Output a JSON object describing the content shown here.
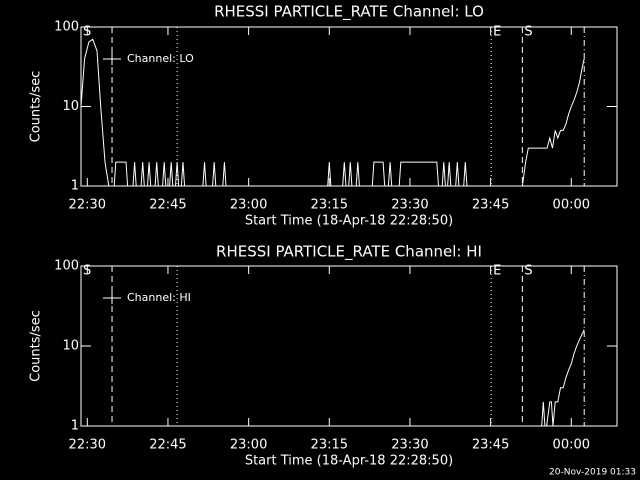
{
  "chart_data": [
    {
      "type": "line",
      "title": "RHESSI PARTICLE_RATE Channel: LO",
      "xlabel": "Start Time (18-Apr-18 22:28:50)",
      "ylabel": "Counts/sec",
      "xlim": [
        28.83,
        128.5
      ],
      "ylim": [
        1,
        100
      ],
      "log_y": true,
      "xticks": [
        {
          "value": 30,
          "label": "22:30"
        },
        {
          "value": 45,
          "label": "22:45"
        },
        {
          "value": 60,
          "label": "23:00"
        },
        {
          "value": 75,
          "label": "23:15"
        },
        {
          "value": 90,
          "label": "23:30"
        },
        {
          "value": 105,
          "label": "23:45"
        },
        {
          "value": 120,
          "label": "00:00"
        }
      ],
      "yticks": [
        1,
        10,
        100
      ],
      "markers": [
        {
          "x": 28.83,
          "label": "S",
          "style": "none"
        },
        {
          "x": 34.6,
          "style": "dashed"
        },
        {
          "x": 46.7,
          "style": "dotted"
        },
        {
          "x": 105.1,
          "label": "E",
          "style": "dotted"
        },
        {
          "x": 110.9,
          "label": "S",
          "style": "dashed"
        },
        {
          "x": 122.4,
          "style": "dashdot"
        }
      ],
      "series": [
        {
          "name": "Channel: LO",
          "color": "#ffffff",
          "x": [
            28.83,
            29.5,
            30.3,
            31,
            31.8,
            32.5,
            33.3,
            34,
            35,
            35.3,
            37.2,
            37.5,
            38.5,
            38.8,
            39.1,
            40,
            40.3,
            40.6,
            41.2,
            41.5,
            41.8,
            42.6,
            42.9,
            43.2,
            44,
            44.3,
            44.6,
            45.3,
            45.6,
            45.9,
            46.4,
            46.7,
            47,
            47.5,
            47.8,
            48.1,
            51.5,
            51.8,
            52.1,
            53.3,
            53.6,
            53.9,
            55.2,
            55.5,
            55.8,
            74.7,
            75,
            75.3,
            77.5,
            77.8,
            78.1,
            78.6,
            78.9,
            79.2,
            80,
            80.3,
            80.6,
            83,
            83.3,
            85,
            85.3,
            86,
            86.3,
            86.6,
            88,
            88.3,
            95,
            95.3,
            96,
            96.3,
            96.6,
            97,
            97.3,
            97.6,
            98.5,
            98.8,
            99.1,
            100,
            100.3,
            100.6,
            110.9,
            111.5,
            112,
            115,
            115.5,
            116,
            116.5,
            117,
            117.5,
            118,
            118.5,
            119,
            119.5,
            120,
            120.5,
            121,
            121.5,
            122,
            122.4
          ],
          "values": [
            10,
            40,
            65,
            70,
            50,
            10,
            2,
            1,
            1,
            2,
            2,
            1,
            1,
            2,
            1,
            1,
            2,
            1,
            1,
            2,
            1,
            1,
            2,
            1,
            1,
            2,
            1,
            1,
            2,
            1,
            1,
            2,
            1,
            1,
            2,
            1,
            1,
            2,
            1,
            1,
            2,
            1,
            1,
            2,
            1,
            1,
            2,
            1,
            1,
            2,
            1,
            1,
            2,
            1,
            1,
            2,
            1,
            1,
            2,
            2,
            1,
            1,
            2,
            1,
            1,
            2,
            2,
            1,
            1,
            2,
            1,
            1,
            2,
            1,
            1,
            2,
            1,
            1,
            2,
            1,
            1,
            2,
            3,
            3,
            3,
            4,
            3,
            5,
            4,
            5,
            5,
            6,
            8,
            10,
            12,
            15,
            20,
            30,
            40
          ]
        }
      ]
    },
    {
      "type": "line",
      "title": "RHESSI PARTICLE_RATE Channel: HI",
      "xlabel": "Start Time (18-Apr-18 22:28:50)",
      "ylabel": "Counts/sec",
      "xlim": [
        28.83,
        128.5
      ],
      "ylim": [
        1,
        100
      ],
      "log_y": true,
      "xticks": [
        {
          "value": 30,
          "label": "22:30"
        },
        {
          "value": 45,
          "label": "22:45"
        },
        {
          "value": 60,
          "label": "23:00"
        },
        {
          "value": 75,
          "label": "23:15"
        },
        {
          "value": 90,
          "label": "23:30"
        },
        {
          "value": 105,
          "label": "23:45"
        },
        {
          "value": 120,
          "label": "00:00"
        }
      ],
      "yticks": [
        1,
        10,
        100
      ],
      "markers": [
        {
          "x": 28.83,
          "label": "S",
          "style": "none"
        },
        {
          "x": 34.6,
          "style": "dashed"
        },
        {
          "x": 46.7,
          "style": "dotted"
        },
        {
          "x": 105.1,
          "label": "E",
          "style": "dotted"
        },
        {
          "x": 110.9,
          "label": "S",
          "style": "dashed"
        },
        {
          "x": 122.4,
          "style": "dashdot"
        }
      ],
      "series": [
        {
          "name": "Channel: HI",
          "color": "#ffffff",
          "x": [
            114.5,
            114.8,
            115.1,
            115.4,
            116,
            116.3,
            116.6,
            117,
            117.5,
            118,
            118.5,
            119,
            119.5,
            120,
            120.5,
            121,
            121.5,
            122,
            122.4
          ],
          "values": [
            1,
            2,
            1,
            1,
            2,
            2,
            1,
            2,
            2,
            3,
            3,
            4,
            5,
            6,
            8,
            10,
            12,
            14,
            16
          ]
        }
      ]
    }
  ],
  "footer": "20-Nov-2019 01:33"
}
